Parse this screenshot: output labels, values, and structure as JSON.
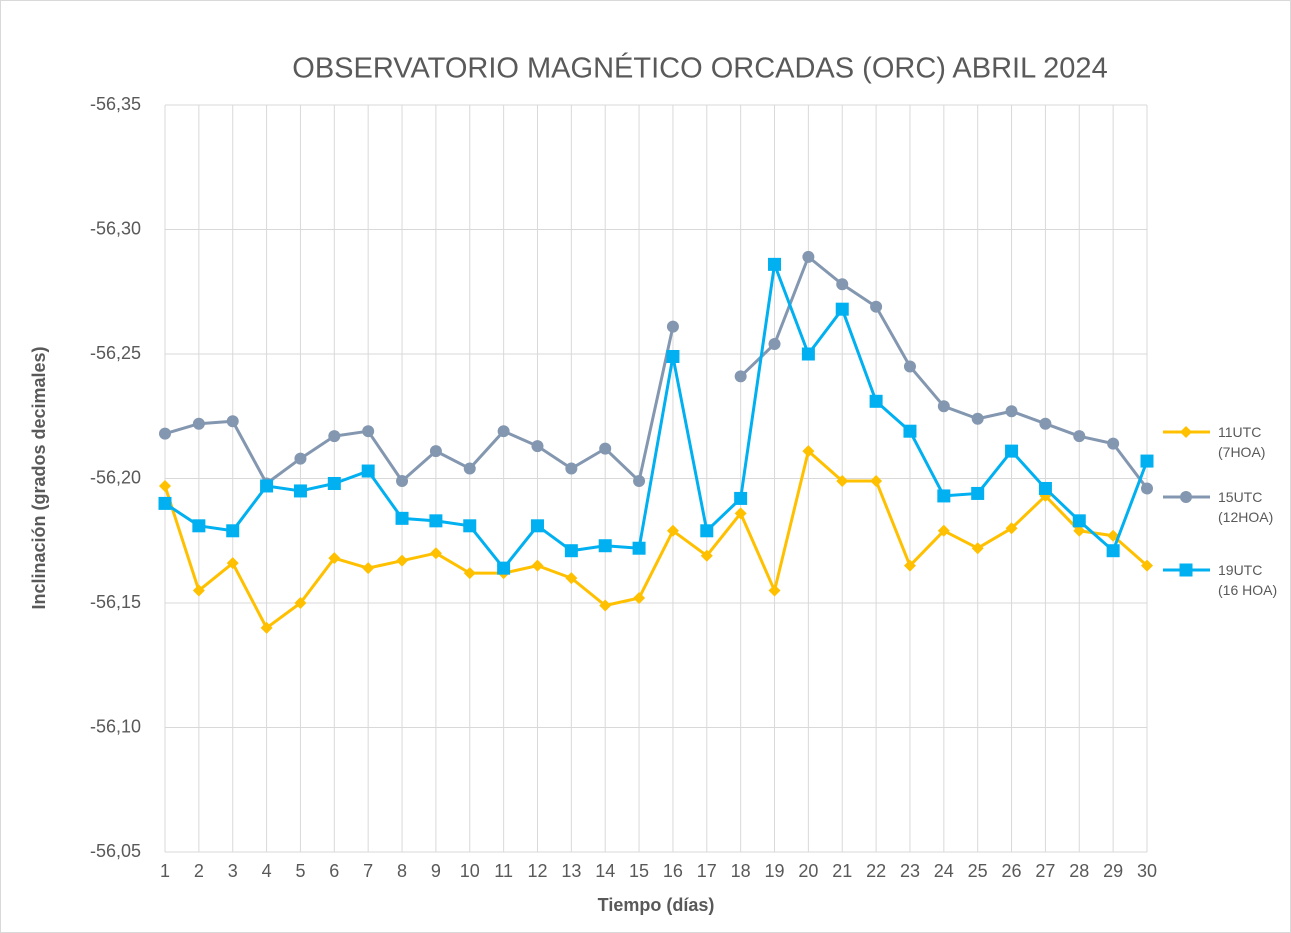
{
  "chart_data": {
    "type": "line",
    "title": "OBSERVATORIO MAGNÉTICO ORCADAS (ORC) ABRIL 2024",
    "x_label": "Tiempo (días)",
    "y_label": "Inclinación (grados decimales)",
    "x": [
      1,
      2,
      3,
      4,
      5,
      6,
      7,
      8,
      9,
      10,
      11,
      12,
      13,
      14,
      15,
      16,
      17,
      18,
      19,
      20,
      21,
      22,
      23,
      24,
      25,
      26,
      27,
      28,
      29,
      30
    ],
    "xlim": [
      1,
      30
    ],
    "xticks": [
      1,
      2,
      3,
      4,
      5,
      6,
      7,
      8,
      9,
      10,
      11,
      12,
      13,
      14,
      15,
      16,
      17,
      18,
      19,
      20,
      21,
      22,
      23,
      24,
      25,
      26,
      27,
      28,
      29,
      30
    ],
    "ylim": [
      -56.05,
      -56.35
    ],
    "yticks": [
      {
        "value": -56.05,
        "label": "-56,05"
      },
      {
        "value": -56.1,
        "label": "-56,10"
      },
      {
        "value": -56.15,
        "label": "-56,15"
      },
      {
        "value": -56.2,
        "label": "-56,20"
      },
      {
        "value": -56.25,
        "label": "-56,25"
      },
      {
        "value": -56.3,
        "label": "-56,30"
      },
      {
        "value": -56.35,
        "label": "-56,35"
      }
    ],
    "grid": true,
    "legend": "right",
    "series": [
      {
        "name": "11UTC (7HOA)",
        "color": "#FFC000",
        "marker": "diamond",
        "values": [
          -56.197,
          -56.155,
          -56.166,
          -56.14,
          -56.15,
          -56.168,
          -56.164,
          -56.167,
          -56.17,
          -56.162,
          -56.162,
          -56.165,
          -56.16,
          -56.149,
          -56.152,
          -56.179,
          -56.169,
          -56.186,
          -56.155,
          -56.211,
          -56.199,
          -56.199,
          -56.165,
          -56.179,
          -56.172,
          -56.18,
          -56.193,
          -56.179,
          -56.177,
          -56.165
        ]
      },
      {
        "name": "15UTC (12HOA)",
        "color": "#8497B0",
        "marker": "circle",
        "values": [
          -56.218,
          -56.222,
          -56.223,
          -56.198,
          -56.208,
          -56.217,
          -56.219,
          -56.199,
          -56.211,
          -56.204,
          -56.219,
          -56.213,
          -56.204,
          -56.212,
          -56.199,
          -56.261,
          null,
          -56.241,
          -56.254,
          -56.289,
          -56.278,
          -56.269,
          -56.245,
          -56.229,
          -56.224,
          -56.227,
          -56.222,
          -56.217,
          -56.214,
          -56.196
        ]
      },
      {
        "name": "19UTC (16 HOA)",
        "color": "#00B0F0",
        "marker": "square",
        "values": [
          -56.19,
          -56.181,
          -56.179,
          -56.197,
          -56.195,
          -56.198,
          -56.203,
          -56.184,
          -56.183,
          -56.181,
          -56.164,
          -56.181,
          -56.171,
          -56.173,
          -56.172,
          -56.249,
          -56.179,
          -56.192,
          -56.286,
          -56.25,
          -56.268,
          -56.231,
          -56.219,
          -56.193,
          -56.194,
          -56.211,
          -56.196,
          -56.183,
          -56.171,
          -56.207
        ]
      }
    ]
  }
}
